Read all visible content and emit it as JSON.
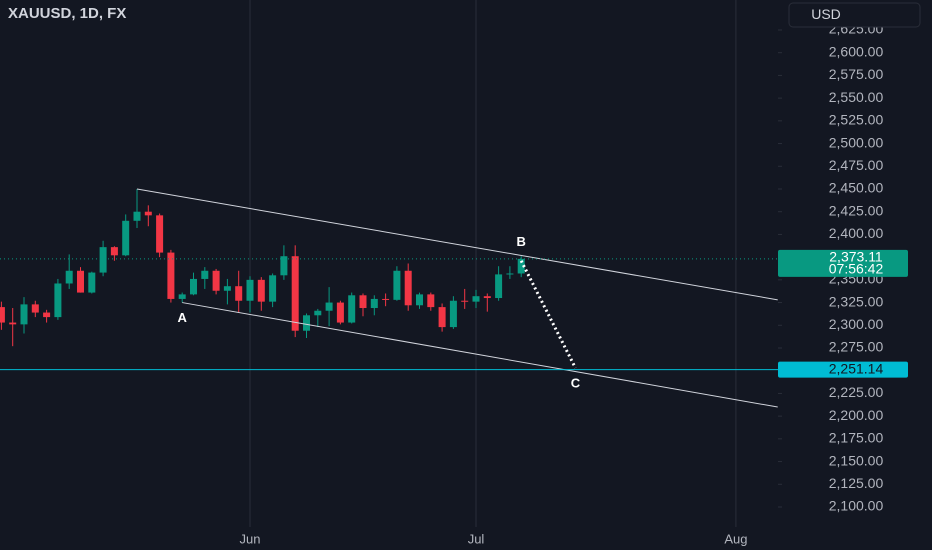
{
  "chart_data": {
    "type": "candlestick",
    "title": "XAUUSD, 1D, FX",
    "currency": "USD",
    "categories": [
      null,
      null,
      null,
      null,
      null,
      null,
      null,
      null,
      null,
      null,
      null,
      null,
      null,
      null,
      null,
      null,
      null,
      null,
      null,
      null,
      null,
      null,
      "Jun",
      null,
      null,
      null,
      null,
      null,
      null,
      null,
      null,
      null,
      null,
      null,
      null,
      null,
      null,
      null,
      null,
      null,
      null,
      null,
      "Jul",
      null,
      null,
      null,
      null,
      null,
      null,
      null,
      null,
      null,
      null,
      null,
      null,
      null,
      null,
      null,
      null,
      null,
      null,
      null,
      null,
      null,
      null,
      "Aug",
      null,
      null,
      null
    ],
    "open": [
      2320,
      2303,
      2301,
      2323,
      2314,
      2309,
      2346,
      2360,
      2336,
      2358,
      2386,
      2377,
      2415,
      2425,
      2421,
      2380,
      2329,
      2334,
      2351,
      2360,
      2338,
      2343,
      2327,
      2350,
      2326,
      2355,
      2376,
      2294,
      2311,
      2316,
      2325,
      2303,
      2333,
      2319,
      2329,
      2328,
      2360,
      2322,
      2334,
      2320,
      2298,
      2327,
      2326,
      2332,
      2330,
      2356,
      2357,
      null,
      null,
      null,
      null,
      null,
      null,
      null,
      null,
      null,
      null,
      null,
      null,
      null,
      null,
      null,
      null,
      null,
      null,
      null,
      null,
      null,
      null
    ],
    "high": [
      2326,
      2319,
      2331,
      2327,
      2317,
      2351,
      2378,
      2364,
      2359,
      2393,
      2387,
      2422,
      2450,
      2432,
      2423,
      2383,
      2336,
      2358,
      2364,
      2362,
      2351,
      2360,
      2354,
      2353,
      2357,
      2388,
      2388,
      2313,
      2318,
      2342,
      2327,
      2336,
      2335,
      2333,
      2335,
      2365,
      2368,
      2336,
      2336,
      2324,
      2332,
      2340,
      2339,
      2335,
      2365,
      2365,
      2376,
      null,
      null,
      null,
      null,
      null,
      null,
      null,
      null,
      null,
      null,
      null,
      null,
      null,
      null,
      null,
      null,
      null,
      null,
      null,
      null,
      null,
      null
    ],
    "low": [
      2295,
      2277,
      2291,
      2309,
      2303,
      2306,
      2340,
      2336,
      2335,
      2354,
      2371,
      2376,
      2407,
      2409,
      2375,
      2325,
      2325,
      2333,
      2340,
      2334,
      2323,
      2314,
      2314,
      2316,
      2320,
      2350,
      2287,
      2286,
      2298,
      2299,
      2301,
      2302,
      2310,
      2311,
      2321,
      2327,
      2316,
      2318,
      2316,
      2293,
      2296,
      2318,
      2319,
      2315,
      2327,
      2351,
      2353,
      null,
      null,
      null,
      null,
      null,
      null,
      null,
      null,
      null,
      null,
      null,
      null,
      null,
      null,
      null,
      null,
      null,
      null,
      null,
      null,
      null,
      null
    ],
    "close": [
      2303,
      2301,
      2323,
      2314,
      2309,
      2346,
      2360,
      2336,
      2358,
      2386,
      2377,
      2415,
      2425,
      2421,
      2380,
      2329,
      2334,
      2351,
      2360,
      2338,
      2343,
      2327,
      2350,
      2326,
      2355,
      2376,
      2294,
      2311,
      2316,
      2325,
      2303,
      2333,
      2319,
      2329,
      2328,
      2360,
      2322,
      2334,
      2320,
      2298,
      2327,
      2326,
      2332,
      2330,
      2356,
      2357,
      2373.11,
      null,
      null,
      null,
      null,
      null,
      null,
      null,
      null,
      null,
      null,
      null,
      null,
      null,
      null,
      null,
      null,
      null,
      null,
      null,
      null,
      null,
      null
    ],
    "up_color": "#089981",
    "down_color": "#f23645",
    "ylim": [
      2052.67,
      2658.0
    ],
    "yticks": [
      {
        "value": 2100,
        "label": "2,100.00"
      },
      {
        "value": 2125,
        "label": "2,125.00"
      },
      {
        "value": 2150,
        "label": "2,150.00"
      },
      {
        "value": 2175,
        "label": "2,175.00"
      },
      {
        "value": 2200,
        "label": "2,200.00"
      },
      {
        "value": 2225,
        "label": "2,225.00"
      },
      {
        "value": 2250,
        "label": "2,250.00"
      },
      {
        "value": 2275,
        "label": "2,275.00"
      },
      {
        "value": 2300,
        "label": "2,300.00"
      },
      {
        "value": 2325,
        "label": "2,325.00"
      },
      {
        "value": 2350,
        "label": "2,350.00"
      },
      {
        "value": 2375,
        "label": "2,375.00"
      },
      {
        "value": 2400,
        "label": "2,400.00"
      },
      {
        "value": 2425,
        "label": "2,425.00"
      },
      {
        "value": 2450,
        "label": "2,450.00"
      },
      {
        "value": 2475,
        "label": "2,475.00"
      },
      {
        "value": 2500,
        "label": "2,500.00"
      },
      {
        "value": 2525,
        "label": "2,525.00"
      },
      {
        "value": 2550,
        "label": "2,550.00"
      },
      {
        "value": 2575,
        "label": "2,575.00"
      },
      {
        "value": 2600,
        "label": "2,600.00"
      },
      {
        "value": 2625,
        "label": "2,625.00"
      }
    ],
    "last_price": {
      "value": 2373.11,
      "label": "2,373.11",
      "countdown": "07:56:42",
      "color": "#089981"
    },
    "hline": {
      "value": 2251.14,
      "label": "2,251.14",
      "color": "#00bcd4"
    },
    "channel_lines": [
      [
        [
          12,
          2450
        ],
        [
          68.7,
          2328
        ]
      ],
      [
        [
          16,
          2325
        ],
        [
          68.7,
          2210
        ]
      ]
    ],
    "projection": [
      [
        46,
        2371
      ],
      [
        50.8,
        2253
      ]
    ],
    "wave_labels": [
      "A",
      "B",
      "C"
    ],
    "grid": true
  }
}
